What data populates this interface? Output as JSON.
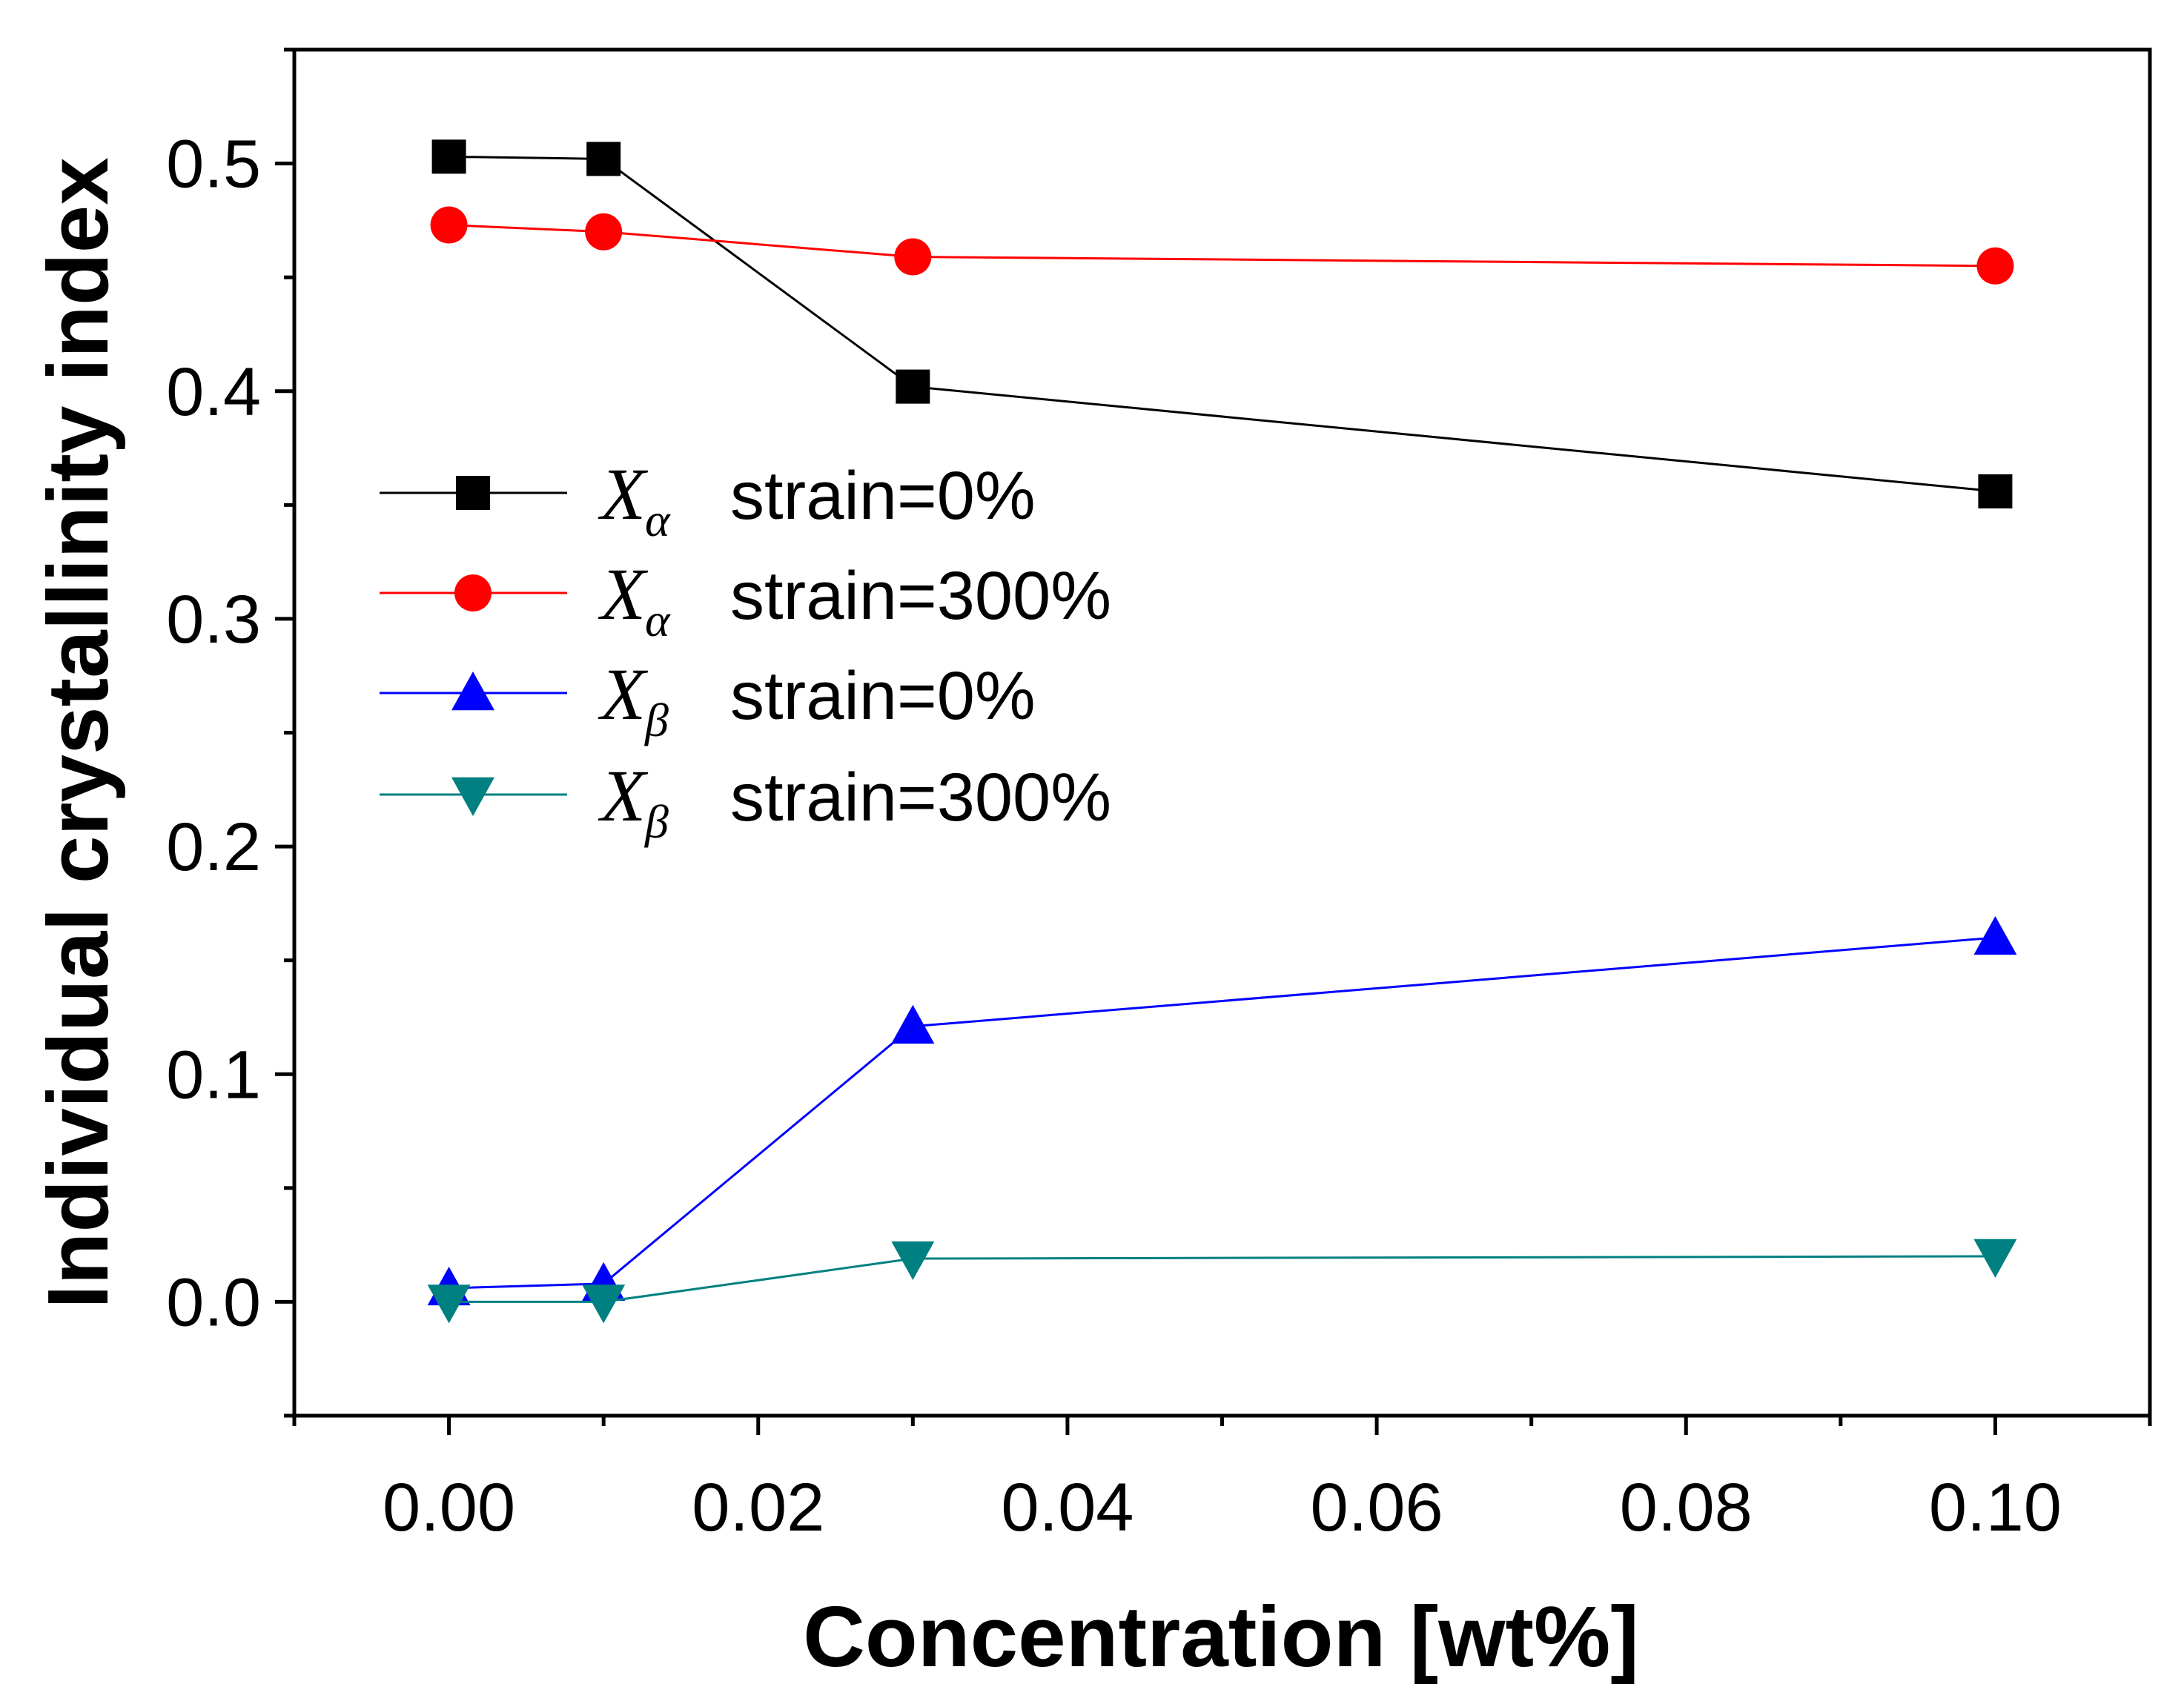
{
  "chart_data": {
    "type": "line",
    "title": "",
    "xlabel": "Concentration [wt%]",
    "ylabel": "Individual crystallinity index",
    "xlim": [
      -0.01,
      0.11
    ],
    "ylim": [
      -0.05,
      0.55
    ],
    "xticks": [
      0.0,
      0.02,
      0.04,
      0.06,
      0.08,
      0.1
    ],
    "xtick_labels": [
      "0.00",
      "0.02",
      "0.04",
      "0.06",
      "0.08",
      "0.10"
    ],
    "yticks": [
      0.0,
      0.1,
      0.2,
      0.3,
      0.4,
      0.5
    ],
    "ytick_labels": [
      "0.0",
      "0.1",
      "0.2",
      "0.3",
      "0.4",
      "0.5"
    ],
    "grid": false,
    "legend_position": "center-left",
    "x": [
      0.0,
      0.01,
      0.03,
      0.1
    ],
    "series": [
      {
        "symbol": "X",
        "subscript": "α",
        "label": "strain=0%",
        "marker": "square",
        "color": "#000000",
        "values": [
          0.503,
          0.502,
          0.402,
          0.356
        ]
      },
      {
        "symbol": "X",
        "subscript": "α",
        "label": "strain=300%",
        "marker": "circle",
        "color": "#ff0000",
        "values": [
          0.473,
          0.47,
          0.459,
          0.455
        ]
      },
      {
        "symbol": "X",
        "subscript": "β",
        "label": "strain=0%",
        "marker": "triangle-up",
        "color": "#0000ff",
        "values": [
          0.006,
          0.008,
          0.121,
          0.16
        ]
      },
      {
        "symbol": "X",
        "subscript": "β",
        "label": "strain=300%",
        "marker": "triangle-down",
        "color": "#008080",
        "values": [
          0.0,
          0.0,
          0.019,
          0.02
        ]
      }
    ]
  }
}
